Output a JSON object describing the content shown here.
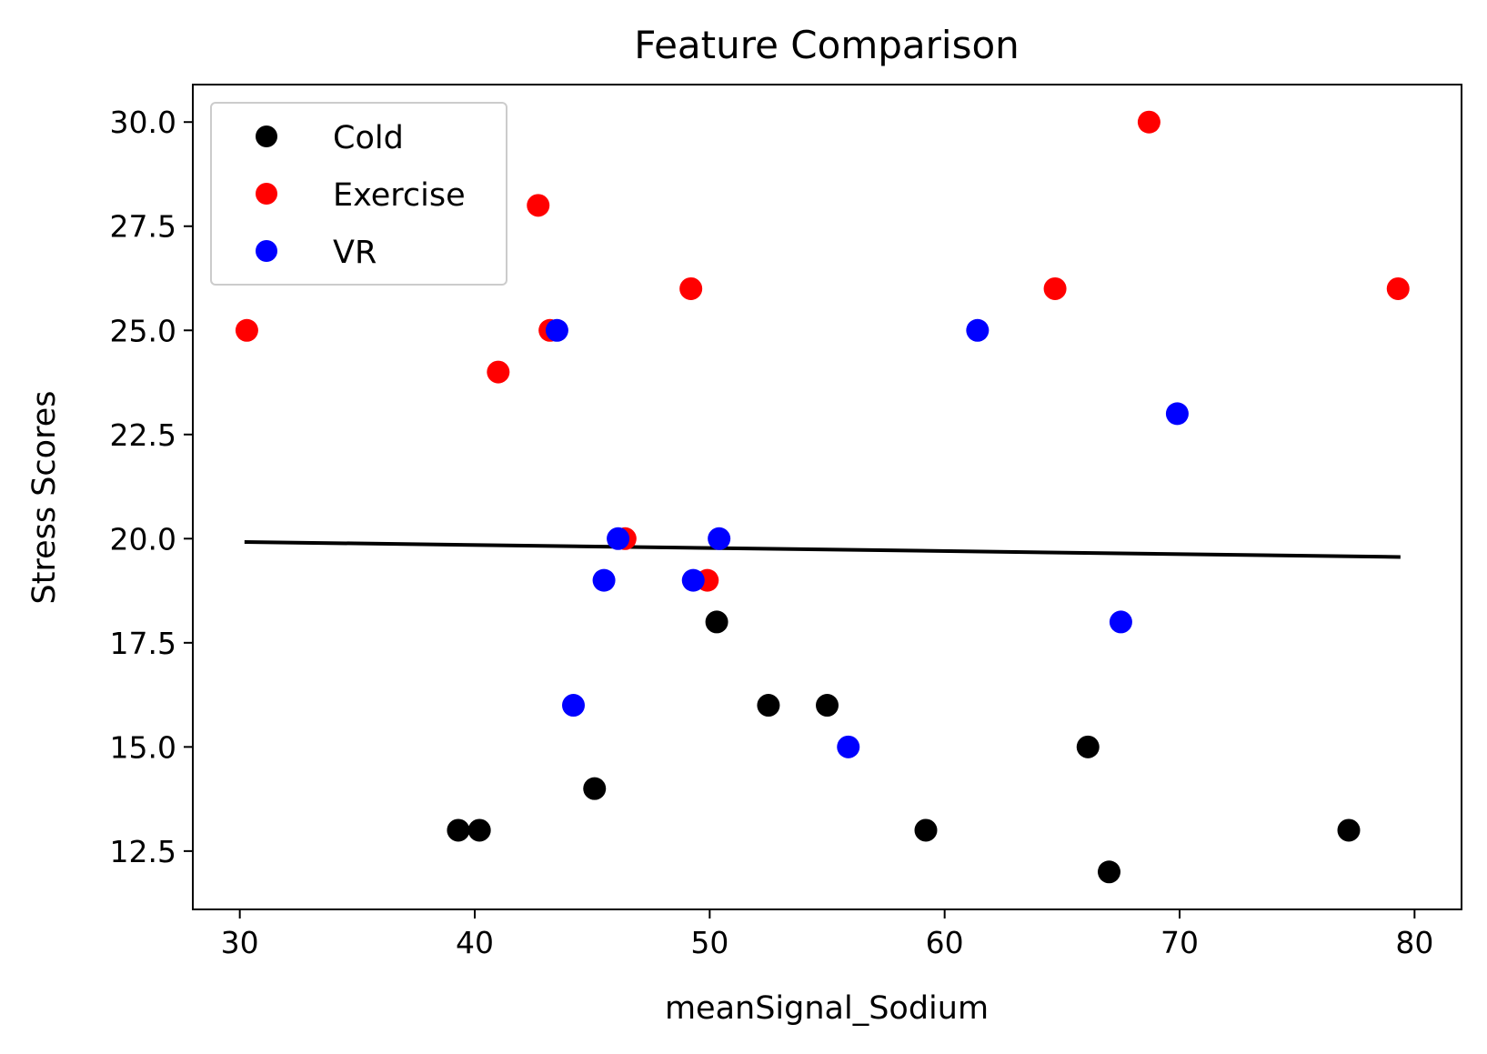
{
  "chart_data": {
    "type": "scatter",
    "title": "Feature Comparison",
    "xlabel": "meanSignal_Sodium",
    "ylabel": "Stress Scores",
    "xlim": [
      28,
      82
    ],
    "ylim": [
      11.1,
      30.9
    ],
    "xticks": [
      30,
      40,
      50,
      60,
      70,
      80
    ],
    "xtick_labels": [
      "30",
      "40",
      "50",
      "60",
      "70",
      "80"
    ],
    "yticks": [
      12.5,
      15.0,
      17.5,
      20.0,
      22.5,
      25.0,
      27.5,
      30.0
    ],
    "ytick_labels": [
      "12.5",
      "15.0",
      "17.5",
      "20.0",
      "22.5",
      "25.0",
      "27.5",
      "30.0"
    ],
    "grid": false,
    "legend_position": "top-left",
    "series": [
      {
        "name": "Cold",
        "color": "#000000",
        "points": [
          {
            "x": 39.3,
            "y": 13
          },
          {
            "x": 40.2,
            "y": 13
          },
          {
            "x": 45.1,
            "y": 14
          },
          {
            "x": 50.3,
            "y": 18
          },
          {
            "x": 52.5,
            "y": 16
          },
          {
            "x": 55.0,
            "y": 16
          },
          {
            "x": 59.2,
            "y": 13
          },
          {
            "x": 66.1,
            "y": 15
          },
          {
            "x": 67.0,
            "y": 12
          },
          {
            "x": 77.2,
            "y": 13
          }
        ]
      },
      {
        "name": "Exercise",
        "color": "#ff0000",
        "points": [
          {
            "x": 30.3,
            "y": 25
          },
          {
            "x": 41.0,
            "y": 24
          },
          {
            "x": 42.7,
            "y": 28
          },
          {
            "x": 43.2,
            "y": 25
          },
          {
            "x": 46.4,
            "y": 20
          },
          {
            "x": 49.2,
            "y": 26
          },
          {
            "x": 49.9,
            "y": 19
          },
          {
            "x": 64.7,
            "y": 26
          },
          {
            "x": 68.7,
            "y": 30
          },
          {
            "x": 79.3,
            "y": 26
          }
        ]
      },
      {
        "name": "VR",
        "color": "#0000ff",
        "points": [
          {
            "x": 43.5,
            "y": 25
          },
          {
            "x": 44.2,
            "y": 16
          },
          {
            "x": 45.5,
            "y": 19
          },
          {
            "x": 46.1,
            "y": 20
          },
          {
            "x": 49.3,
            "y": 19
          },
          {
            "x": 50.4,
            "y": 20
          },
          {
            "x": 55.9,
            "y": 15
          },
          {
            "x": 61.4,
            "y": 25
          },
          {
            "x": 67.5,
            "y": 18
          },
          {
            "x": 69.9,
            "y": 23
          }
        ]
      }
    ],
    "fit_line": {
      "color": "#000000",
      "points": [
        {
          "x": 30.2,
          "y": 19.92
        },
        {
          "x": 79.4,
          "y": 19.56
        }
      ]
    }
  }
}
